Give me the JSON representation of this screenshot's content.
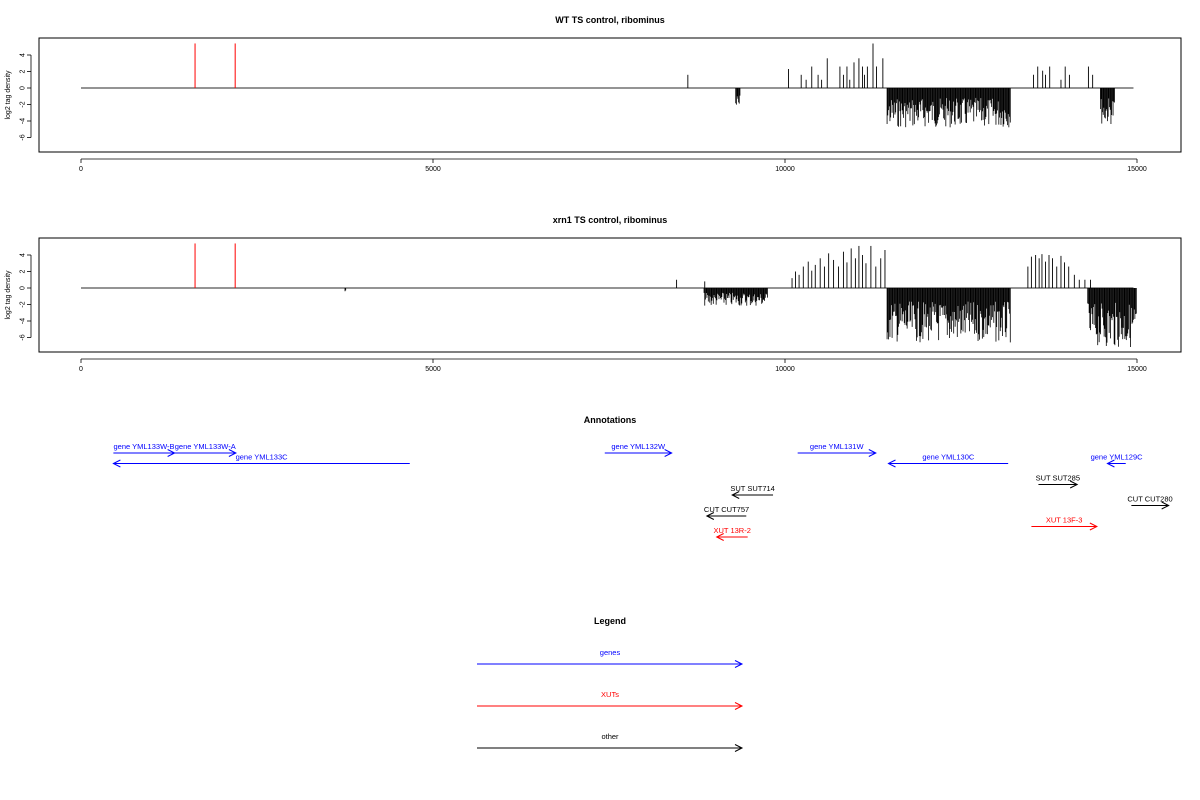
{
  "chart_data": [
    {
      "type": "bar",
      "title": "WT TS control, ribominus",
      "ylabel": "log2 tag density",
      "xlim": [
        0,
        15000
      ],
      "ylim": [
        -7,
        7
      ],
      "xticks": [
        "0",
        "5000",
        "10000",
        "15000"
      ],
      "yticks": [
        "-6",
        "-4",
        "-2",
        "0",
        "2",
        "4"
      ],
      "baseline": [
        0,
        14950
      ],
      "red_bars": [
        {
          "x": 1620,
          "y": 5.4
        },
        {
          "x": 2190,
          "y": 5.4
        }
      ],
      "positive_bars": [
        [
          8620,
          1.6
        ],
        [
          10050,
          2.3
        ],
        [
          10230,
          1.6
        ],
        [
          10300,
          1.0
        ],
        [
          10380,
          2.6
        ],
        [
          10470,
          1.6
        ],
        [
          10520,
          1.0
        ],
        [
          10600,
          3.6
        ],
        [
          10780,
          2.6
        ],
        [
          10830,
          1.6
        ],
        [
          10880,
          2.6
        ],
        [
          10920,
          1.0
        ],
        [
          10980,
          3.1
        ],
        [
          11050,
          3.6
        ],
        [
          11100,
          2.6
        ],
        [
          11130,
          1.6
        ],
        [
          11170,
          2.6
        ],
        [
          11250,
          5.4
        ],
        [
          11300,
          2.6
        ],
        [
          11390,
          3.6
        ],
        [
          13530,
          1.6
        ],
        [
          13590,
          2.6
        ],
        [
          13660,
          2.1
        ],
        [
          13700,
          1.6
        ],
        [
          13760,
          2.6
        ],
        [
          13920,
          1.0
        ],
        [
          13980,
          2.6
        ],
        [
          14040,
          1.6
        ],
        [
          14310,
          2.6
        ],
        [
          14370,
          1.6
        ]
      ],
      "negative_regions": [
        {
          "start": 9300,
          "end": 9360,
          "depth": 3.0
        },
        {
          "start": 11450,
          "end": 13200,
          "depth": 4.8
        },
        {
          "start": 14480,
          "end": 14680,
          "depth": 4.4
        }
      ]
    },
    {
      "type": "bar",
      "title": "xrn1 TS control, ribominus",
      "ylabel": "log2 tag density",
      "xlim": [
        0,
        15000
      ],
      "ylim": [
        -7,
        7
      ],
      "xticks": [
        "0",
        "5000",
        "10000",
        "15000"
      ],
      "yticks": [
        "-6",
        "-4",
        "-2",
        "0",
        "2",
        "4"
      ],
      "baseline": [
        0,
        14950
      ],
      "red_bars": [
        {
          "x": 1620,
          "y": 5.4
        },
        {
          "x": 2190,
          "y": 5.4
        }
      ],
      "positive_bars": [
        [
          8460,
          1.0
        ],
        [
          8860,
          0.8
        ],
        [
          10100,
          1.2
        ],
        [
          10150,
          2.0
        ],
        [
          10200,
          1.6
        ],
        [
          10260,
          2.6
        ],
        [
          10330,
          3.2
        ],
        [
          10380,
          2.1
        ],
        [
          10430,
          2.8
        ],
        [
          10500,
          3.6
        ],
        [
          10560,
          2.6
        ],
        [
          10620,
          4.2
        ],
        [
          10690,
          3.4
        ],
        [
          10760,
          2.6
        ],
        [
          10830,
          4.4
        ],
        [
          10880,
          3.1
        ],
        [
          10940,
          4.8
        ],
        [
          11000,
          3.6
        ],
        [
          11050,
          5.1
        ],
        [
          11100,
          4.0
        ],
        [
          11150,
          3.0
        ],
        [
          11220,
          5.1
        ],
        [
          11290,
          2.6
        ],
        [
          11360,
          3.6
        ],
        [
          11420,
          4.6
        ],
        [
          13450,
          2.6
        ],
        [
          13500,
          3.8
        ],
        [
          13560,
          4.0
        ],
        [
          13610,
          3.6
        ],
        [
          13650,
          4.1
        ],
        [
          13700,
          3.2
        ],
        [
          13750,
          4.0
        ],
        [
          13800,
          3.6
        ],
        [
          13860,
          2.6
        ],
        [
          13920,
          3.9
        ],
        [
          13970,
          3.1
        ],
        [
          14030,
          2.6
        ],
        [
          14110,
          1.6
        ],
        [
          14180,
          1.0
        ],
        [
          14260,
          1.0
        ],
        [
          14340,
          1.0
        ]
      ],
      "negative_regions": [
        {
          "start": 3750,
          "end": 3760,
          "depth": 0.6
        },
        {
          "start": 8850,
          "end": 9750,
          "depth": 2.2
        },
        {
          "start": 11450,
          "end": 13200,
          "depth": 6.6
        },
        {
          "start": 14300,
          "end": 14990,
          "depth": 7.2
        }
      ]
    }
  ],
  "annotations": {
    "title": "Annotations",
    "features": [
      {
        "label": "gene YML133W-B",
        "start": 460,
        "end": 1330,
        "dir": "+",
        "color": "#0000ff",
        "row": 0
      },
      {
        "label": "gene YML133W-A",
        "start": 1330,
        "end": 2200,
        "dir": "+",
        "color": "#0000ff",
        "row": 0
      },
      {
        "label": "gene YML133C",
        "start": 460,
        "end": 4670,
        "dir": "-",
        "color": "#0000ff",
        "row": 1
      },
      {
        "label": "gene YML132W",
        "start": 7440,
        "end": 8390,
        "dir": "+",
        "color": "#0000ff",
        "row": 0
      },
      {
        "label": "gene YML131W",
        "start": 10180,
        "end": 11290,
        "dir": "+",
        "color": "#0000ff",
        "row": 0
      },
      {
        "label": "gene YML130C",
        "start": 11470,
        "end": 13170,
        "dir": "-",
        "color": "#0000ff",
        "row": 1
      },
      {
        "label": "gene YML129C",
        "start": 14580,
        "end": 14840,
        "dir": "-",
        "color": "#0000ff",
        "row": 1
      },
      {
        "label": "SUT SUT714",
        "start": 9250,
        "end": 9830,
        "dir": "-",
        "color": "#000000",
        "row": 4
      },
      {
        "label": "SUT SUT285",
        "start": 13600,
        "end": 14150,
        "dir": "+",
        "color": "#000000",
        "row": 3
      },
      {
        "label": "CUT CUT757",
        "start": 8890,
        "end": 9450,
        "dir": "-",
        "color": "#000000",
        "row": 6
      },
      {
        "label": "CUT CUT280",
        "start": 14920,
        "end": 15450,
        "dir": "+",
        "color": "#000000",
        "row": 5
      },
      {
        "label": "XUT 13R-2",
        "start": 9030,
        "end": 9470,
        "dir": "-",
        "color": "#ff0000",
        "row": 8
      },
      {
        "label": "XUT 13F-3",
        "start": 13500,
        "end": 14430,
        "dir": "+",
        "color": "#ff0000",
        "row": 7
      }
    ]
  },
  "legend": {
    "title": "Legend",
    "items": [
      {
        "label": "genes",
        "color": "#0000ff"
      },
      {
        "label": "XUTs",
        "color": "#ff0000"
      },
      {
        "label": "other",
        "color": "#000000"
      }
    ]
  }
}
